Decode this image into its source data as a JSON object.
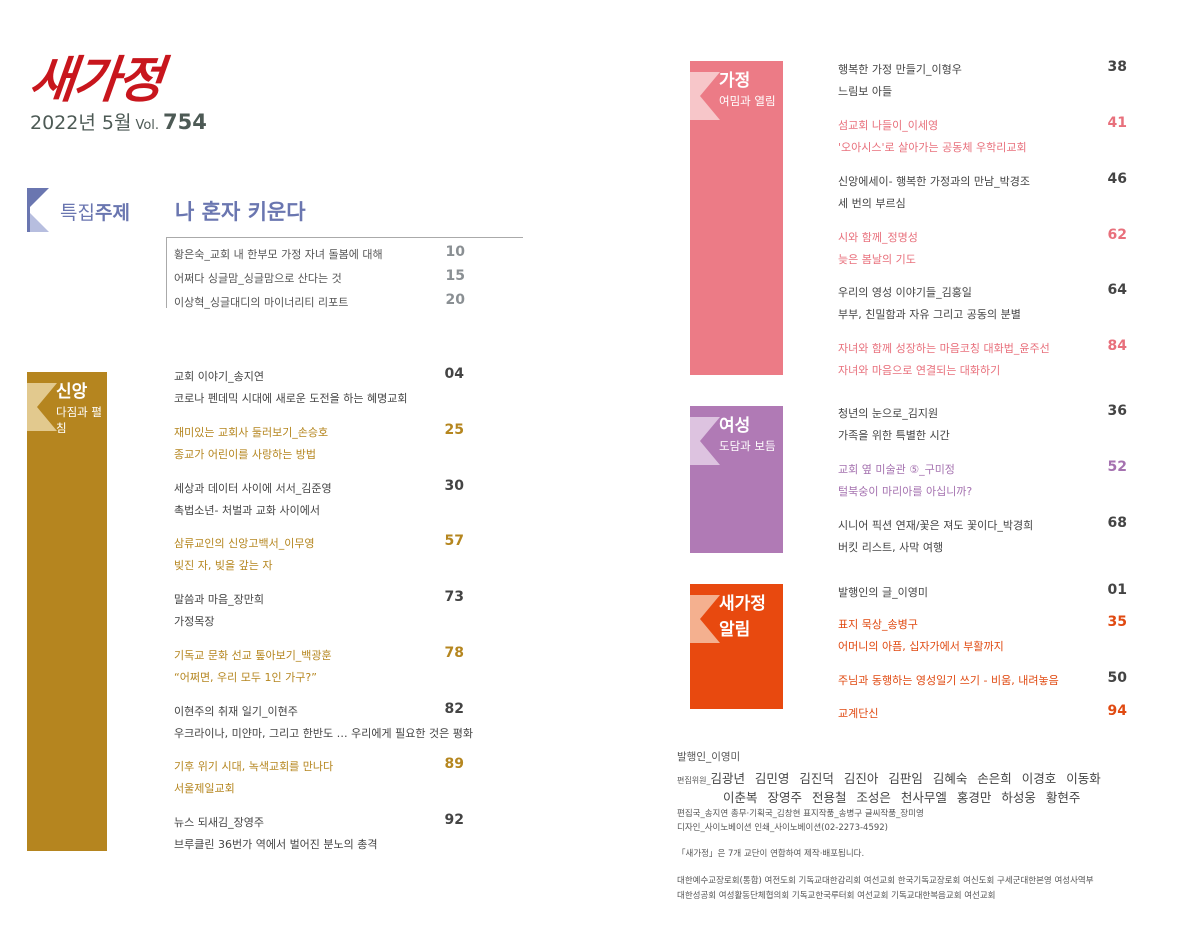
{
  "header": {
    "logo_text": "새가정",
    "issue_date": "2022년 5월",
    "vol_label": "Vol.",
    "vol_number": "754",
    "logo_color": "#c8161d"
  },
  "feature": {
    "label_light": "특집",
    "label_bold": "주제",
    "title": "나 혼자 키운다",
    "color": "#6a76b0",
    "items": [
      {
        "title": "황은숙_교회 내 한부모 가정 자녀 돌봄에 대해",
        "page": "10"
      },
      {
        "title": "어쩌다 싱글맘_싱글맘으로 산다는 것",
        "page": "15"
      },
      {
        "title": "이상혁_싱글대디의 마이너리티 리포트",
        "page": "20"
      }
    ]
  },
  "sections": [
    {
      "key": "faith",
      "title": "신앙",
      "subtitle": "다짐과 펼침",
      "color": "#b5851f",
      "ribbon": "#e2c98e",
      "accent": "#b5861f",
      "items": [
        {
          "title": "교회 이야기_송지연",
          "subtitle": "코로나 펜데믹 시대에 새로운 도전을 하는 혜명교회",
          "page": "04",
          "hl": false,
          "num_hl": false
        },
        {
          "title": "재미있는 교회사 둘러보기_손승호",
          "subtitle": "종교가 어린이를 사랑하는 방법",
          "page": "25",
          "hl": true,
          "num_hl": true
        },
        {
          "title": "세상과 데이터 사이에 서서_김준영",
          "subtitle": "촉법소년- 처벌과 교화 사이에서",
          "page": "30",
          "hl": false,
          "num_hl": false
        },
        {
          "title": "삼류교인의 신앙고백서_이무영",
          "subtitle": "빚진 자, 빚을 갚는 자",
          "page": "57",
          "hl": true,
          "num_hl": true
        },
        {
          "title": "말씀과 마음_장만희",
          "subtitle": "가정목장",
          "page": "73",
          "hl": false,
          "num_hl": false
        },
        {
          "title": "기독교 문화 선교 톺아보기_백광훈",
          "subtitle": "“어쩌면, 우리 모두 1인 가구?”",
          "page": "78",
          "hl": true,
          "num_hl": true
        },
        {
          "title": "이현주의 취재 일기_이현주",
          "subtitle": "우크라이나, 미얀마, 그리고 한반도 … 우리에게 필요한 것은 평화",
          "page": "82",
          "hl": false,
          "num_hl": false
        },
        {
          "title": "기후 위기 시대, 녹색교회를 만나다",
          "subtitle": "서울제일교회",
          "page": "89",
          "hl": true,
          "num_hl": true
        },
        {
          "title": "뉴스 되새김_장영주",
          "subtitle": "브루클린 36번가 역에서 벌어진 분노의 총격",
          "page": "92",
          "hl": false,
          "num_hl": false
        }
      ]
    },
    {
      "key": "family",
      "title": "가정",
      "subtitle": "여밈과 열림",
      "color": "#ec7b86",
      "ribbon": "#f7c6c9",
      "accent": "#e8707c",
      "items": [
        {
          "title": "행복한 가정 만들기_이형우",
          "subtitle": "느림보 아들",
          "page": "38",
          "hl": false,
          "num_hl": false
        },
        {
          "title": "섬교회 나들이_이세영",
          "subtitle": "'오아시스'로 살아가는 공동체 우학리교회",
          "page": "41",
          "hl": true,
          "num_hl": true
        },
        {
          "title": "신앙에세이- 행복한 가정과의 만남_박경조",
          "subtitle": "세 번의 부르심",
          "page": "46",
          "hl": false,
          "num_hl": false
        },
        {
          "title": "시와 함께_정명성",
          "subtitle": "늦은 봄날의 기도",
          "page": "62",
          "hl": true,
          "num_hl": true
        },
        {
          "title": "우리의 영성 이야기들_김홍일",
          "subtitle": "부부, 친밀함과 자유 그리고 공동의 분별",
          "page": "64",
          "hl": false,
          "num_hl": false
        },
        {
          "title": "자녀와 함께 성장하는 마음코칭 대화법_윤주선",
          "subtitle": "자녀와 마음으로 연결되는 대화하기",
          "page": "84",
          "hl": true,
          "num_hl": true
        }
      ]
    },
    {
      "key": "women",
      "title": "여성",
      "subtitle": "도담과 보듬",
      "color": "#b07ab5",
      "ribbon": "#ddc3e0",
      "accent": "#a572b0",
      "items": [
        {
          "title": "청년의 눈으로_김지원",
          "subtitle": "가족을 위한 특별한 시간",
          "page": "36",
          "hl": false,
          "num_hl": false
        },
        {
          "title": "교회 옆 미술관 ⑤_구미정",
          "subtitle": "털북숭이 마리아를 아십니까?",
          "page": "52",
          "hl": true,
          "num_hl": true
        },
        {
          "title": "시니어 픽션 연재/꽃은 져도 꽃이다_박경희",
          "subtitle": "버킷 리스트, 사막 여행",
          "page": "68",
          "hl": false,
          "num_hl": false
        }
      ]
    },
    {
      "key": "notice",
      "title": "새가정",
      "subtitle": "알림",
      "color": "#e8490f",
      "ribbon": "#f4b08f",
      "accent": "#e04a12",
      "items": [
        {
          "title": "발행인의 글_이영미",
          "subtitle": "",
          "page": "01",
          "hl": false,
          "num_hl": false
        },
        {
          "title": "표지 묵상_송병구",
          "subtitle": "어머니의 아픔, 십자가에서 부활까지",
          "page": "35",
          "hl": true,
          "num_hl": true
        },
        {
          "title": "주님과 동행하는 영성일기 쓰기 - 비움, 내려놓음",
          "subtitle": "",
          "page": "50",
          "hl": true,
          "num_hl": false
        },
        {
          "title": "교계단신",
          "subtitle": "",
          "page": "94",
          "hl": true,
          "num_hl": true
        }
      ]
    }
  ],
  "colophon": {
    "publisher": "발행인_이영미",
    "editors_label": "편집위원_",
    "editors_line1": "김광년 김민영 김진덕 김진아 김판임 김혜숙 손은희 이경호 이동화",
    "editors_line2": "이춘복 장영주 전용철 조성은 천사무엘 홍경만 하성웅 황현주",
    "staff": "편집국_송지연   총무·기획국_김창현   표지작품_송병구   글씨작품_장미영",
    "design": "디자인_사이노베이션   인쇄_사이노베이션(02-2273-4592)",
    "note": "「새가정」은 7개 교단이 연합하여 제작·배포됩니다.",
    "orgs_line1": "대한예수교장로회(통합) 여전도회  기독교대한감리회 여선교회  한국기독교장로회 여신도회 구세군대한본영 여성사역부",
    "orgs_line2": "대한성공회 여성활동단체협의회 기독교한국루터회 여선교회  기독교대한복음교회 여선교회"
  }
}
